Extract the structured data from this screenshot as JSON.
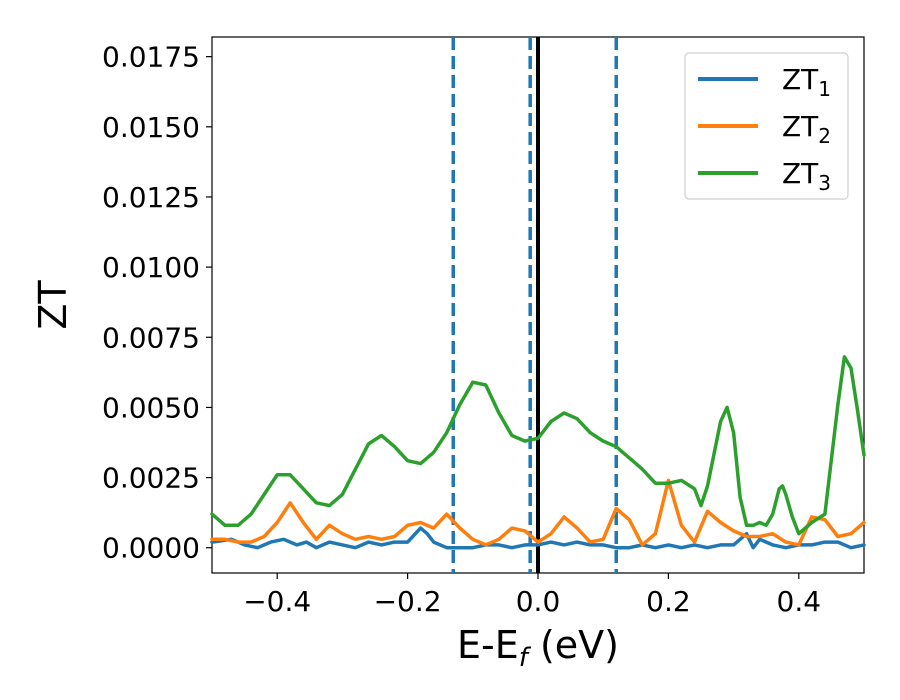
{
  "chart_data": {
    "type": "line",
    "xlabel": "E-E",
    "xlabel_sub": "f",
    "xlabel_unit": " (eV)",
    "ylabel": "ZT",
    "xlim": [
      -0.5,
      0.5
    ],
    "ylim": [
      -0.0009,
      0.0182
    ],
    "xticks": [
      -0.4,
      -0.2,
      0.0,
      0.2,
      0.4
    ],
    "xtick_labels": [
      "−0.4",
      "−0.2",
      "0.0",
      "0.2",
      "0.4"
    ],
    "yticks": [
      0.0,
      0.0025,
      0.005,
      0.0075,
      0.01,
      0.0125,
      0.015,
      0.0175
    ],
    "ytick_labels": [
      "0.0000",
      "0.0025",
      "0.0050",
      "0.0075",
      "0.0100",
      "0.0125",
      "0.0150",
      "0.0175"
    ],
    "legend_position": "top-right",
    "grid": false,
    "vlines_dashed": [
      -0.13,
      -0.012,
      0.12
    ],
    "vline_solid": 0.0,
    "vline_dashed_color": "#1f77b4",
    "vline_solid_color": "#000000",
    "series": [
      {
        "name": "ZT",
        "sub": "1",
        "color": "#1f77b4",
        "x": [
          -0.5,
          -0.47,
          -0.45,
          -0.43,
          -0.41,
          -0.39,
          -0.37,
          -0.355,
          -0.34,
          -0.32,
          -0.3,
          -0.28,
          -0.26,
          -0.24,
          -0.22,
          -0.2,
          -0.18,
          -0.17,
          -0.16,
          -0.14,
          -0.13,
          -0.12,
          -0.1,
          -0.08,
          -0.06,
          -0.04,
          -0.02,
          0.0,
          0.02,
          0.04,
          0.06,
          0.08,
          0.1,
          0.12,
          0.14,
          0.16,
          0.18,
          0.2,
          0.22,
          0.24,
          0.26,
          0.28,
          0.3,
          0.32,
          0.33,
          0.34,
          0.36,
          0.38,
          0.4,
          0.42,
          0.44,
          0.46,
          0.48,
          0.5
        ],
        "y": [
          0.0002,
          0.0003,
          0.0001,
          0.0,
          0.0002,
          0.0003,
          0.0001,
          0.0002,
          0.0,
          0.0002,
          0.0001,
          0.0,
          0.0002,
          0.0001,
          0.0002,
          0.0002,
          0.0007,
          0.0005,
          0.0002,
          0.0,
          0.0,
          0.0,
          0.0,
          0.0001,
          0.0001,
          0.0,
          0.0001,
          0.0001,
          0.0002,
          0.0001,
          0.0002,
          0.0001,
          0.0001,
          0.0,
          0.0,
          0.0001,
          0.0,
          0.0001,
          0.0,
          0.0001,
          0.0,
          0.0001,
          0.0001,
          0.0005,
          0.0,
          0.0003,
          0.0001,
          0.0,
          0.0001,
          0.0001,
          0.0002,
          0.0002,
          0.0,
          0.0001
        ]
      },
      {
        "name": "ZT",
        "sub": "2",
        "color": "#ff7f0e",
        "x": [
          -0.5,
          -0.48,
          -0.46,
          -0.44,
          -0.42,
          -0.4,
          -0.38,
          -0.36,
          -0.34,
          -0.32,
          -0.3,
          -0.28,
          -0.26,
          -0.24,
          -0.22,
          -0.2,
          -0.18,
          -0.16,
          -0.14,
          -0.12,
          -0.1,
          -0.08,
          -0.06,
          -0.04,
          -0.02,
          0.0,
          0.02,
          0.04,
          0.06,
          0.08,
          0.1,
          0.12,
          0.14,
          0.16,
          0.18,
          0.2,
          0.22,
          0.24,
          0.26,
          0.28,
          0.3,
          0.32,
          0.34,
          0.36,
          0.38,
          0.4,
          0.42,
          0.44,
          0.46,
          0.48,
          0.5
        ],
        "y": [
          0.0003,
          0.0003,
          0.0002,
          0.0002,
          0.0004,
          0.0009,
          0.0016,
          0.0009,
          0.0003,
          0.0008,
          0.0005,
          0.0003,
          0.0004,
          0.0003,
          0.0004,
          0.0008,
          0.0009,
          0.0007,
          0.0012,
          0.0007,
          0.0003,
          0.0001,
          0.0003,
          0.0007,
          0.0006,
          0.0002,
          0.0005,
          0.0011,
          0.0007,
          0.0002,
          0.0003,
          0.0014,
          0.001,
          0.0001,
          0.0005,
          0.0024,
          0.0008,
          0.0002,
          0.0013,
          0.0009,
          0.0006,
          0.0004,
          0.0004,
          0.0005,
          0.0002,
          0.0001,
          0.0011,
          0.001,
          0.0004,
          0.0005,
          0.0009
        ]
      },
      {
        "name": "ZT",
        "sub": "3",
        "color": "#2ca02c",
        "x": [
          -0.5,
          -0.48,
          -0.46,
          -0.44,
          -0.42,
          -0.4,
          -0.38,
          -0.36,
          -0.34,
          -0.32,
          -0.3,
          -0.28,
          -0.26,
          -0.24,
          -0.22,
          -0.2,
          -0.18,
          -0.16,
          -0.14,
          -0.12,
          -0.1,
          -0.08,
          -0.06,
          -0.04,
          -0.02,
          0.0,
          0.02,
          0.04,
          0.06,
          0.08,
          0.1,
          0.12,
          0.14,
          0.16,
          0.18,
          0.2,
          0.22,
          0.24,
          0.25,
          0.26,
          0.28,
          0.29,
          0.3,
          0.31,
          0.32,
          0.33,
          0.34,
          0.35,
          0.36,
          0.37,
          0.375,
          0.38,
          0.39,
          0.4,
          0.42,
          0.44,
          0.46,
          0.47,
          0.48,
          0.49,
          0.5
        ],
        "y": [
          0.0012,
          0.0008,
          0.0008,
          0.0012,
          0.0019,
          0.0026,
          0.0026,
          0.0021,
          0.0016,
          0.0015,
          0.0019,
          0.0028,
          0.0037,
          0.004,
          0.0036,
          0.0031,
          0.003,
          0.0034,
          0.0041,
          0.0051,
          0.0059,
          0.0058,
          0.0048,
          0.004,
          0.0038,
          0.0039,
          0.0045,
          0.0048,
          0.0046,
          0.0041,
          0.0038,
          0.0036,
          0.0032,
          0.0028,
          0.0023,
          0.0023,
          0.0024,
          0.0021,
          0.0015,
          0.0022,
          0.0045,
          0.005,
          0.0041,
          0.0018,
          0.0008,
          0.0008,
          0.0009,
          0.0008,
          0.0012,
          0.0021,
          0.0022,
          0.0019,
          0.0011,
          0.0005,
          0.0009,
          0.0012,
          0.0051,
          0.0068,
          0.0064,
          0.0049,
          0.0033
        ]
      }
    ]
  }
}
